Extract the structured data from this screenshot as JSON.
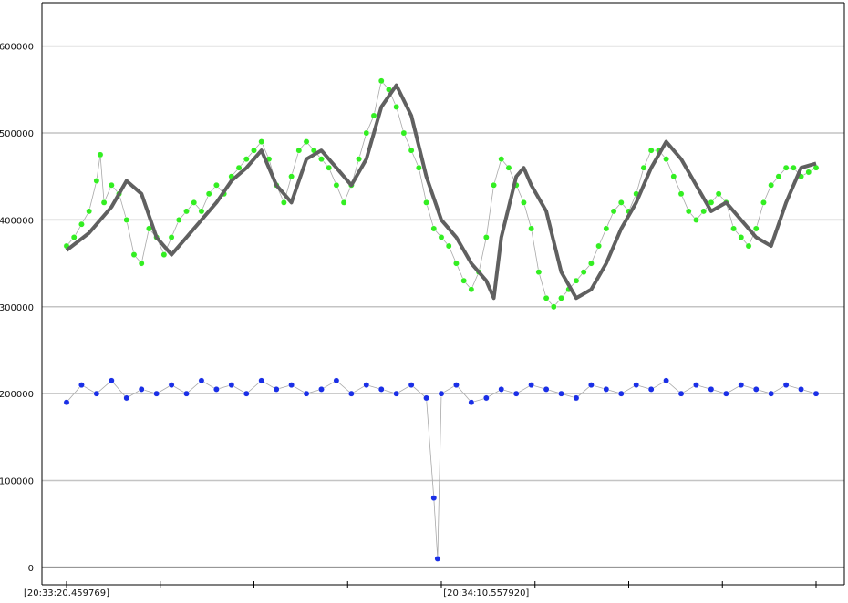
{
  "chart_data": {
    "type": "scatter",
    "title": "",
    "xlabel": "",
    "ylabel": "",
    "ylim": [
      -20000,
      650000
    ],
    "grid": "horizontal",
    "legend": "none",
    "y_ticks": [
      0,
      100000,
      200000,
      300000,
      400000,
      500000,
      600000
    ],
    "y_tick_labels": [
      "0",
      "100000",
      "200000",
      "300000",
      "400000",
      "500000",
      "600000"
    ],
    "x_tick_labels": [
      {
        "label": "[20:33:20.459769]",
        "at": 0
      },
      {
        "label": "[20:34:10.557920]",
        "at": 0.56
      }
    ],
    "x_minor_ticks": 9,
    "colors": {
      "green_series": "#33ee22",
      "blue_series": "#1a2fe6",
      "trend_line": "#606060",
      "stem": "#a8a8a8",
      "grid": "#c4c4c4",
      "zero_line": "#888888",
      "axis": "#000000"
    },
    "series": [
      {
        "type": "scatter",
        "color": "#33ee22",
        "points": [
          [
            0.0,
            370000
          ],
          [
            0.01,
            380000
          ],
          [
            0.02,
            395000
          ],
          [
            0.03,
            410000
          ],
          [
            0.04,
            445000
          ],
          [
            0.045,
            475000
          ],
          [
            0.05,
            420000
          ],
          [
            0.06,
            440000
          ],
          [
            0.07,
            430000
          ],
          [
            0.08,
            400000
          ],
          [
            0.09,
            360000
          ],
          [
            0.1,
            350000
          ],
          [
            0.11,
            390000
          ],
          [
            0.12,
            380000
          ],
          [
            0.13,
            360000
          ],
          [
            0.14,
            380000
          ],
          [
            0.15,
            400000
          ],
          [
            0.16,
            410000
          ],
          [
            0.17,
            420000
          ],
          [
            0.18,
            410000
          ],
          [
            0.19,
            430000
          ],
          [
            0.2,
            440000
          ],
          [
            0.21,
            430000
          ],
          [
            0.22,
            450000
          ],
          [
            0.23,
            460000
          ],
          [
            0.24,
            470000
          ],
          [
            0.25,
            480000
          ],
          [
            0.26,
            490000
          ],
          [
            0.27,
            470000
          ],
          [
            0.28,
            440000
          ],
          [
            0.29,
            420000
          ],
          [
            0.3,
            450000
          ],
          [
            0.31,
            480000
          ],
          [
            0.32,
            490000
          ],
          [
            0.33,
            480000
          ],
          [
            0.34,
            470000
          ],
          [
            0.35,
            460000
          ],
          [
            0.36,
            440000
          ],
          [
            0.37,
            420000
          ],
          [
            0.38,
            440000
          ],
          [
            0.39,
            470000
          ],
          [
            0.4,
            500000
          ],
          [
            0.41,
            520000
          ],
          [
            0.42,
            560000
          ],
          [
            0.43,
            550000
          ],
          [
            0.44,
            530000
          ],
          [
            0.45,
            500000
          ],
          [
            0.46,
            480000
          ],
          [
            0.47,
            460000
          ],
          [
            0.48,
            420000
          ],
          [
            0.49,
            390000
          ],
          [
            0.5,
            380000
          ],
          [
            0.51,
            370000
          ],
          [
            0.52,
            350000
          ],
          [
            0.53,
            330000
          ],
          [
            0.54,
            320000
          ],
          [
            0.55,
            340000
          ],
          [
            0.56,
            380000
          ],
          [
            0.57,
            440000
          ],
          [
            0.58,
            470000
          ],
          [
            0.59,
            460000
          ],
          [
            0.6,
            440000
          ],
          [
            0.61,
            420000
          ],
          [
            0.62,
            390000
          ],
          [
            0.63,
            340000
          ],
          [
            0.64,
            310000
          ],
          [
            0.65,
            300000
          ],
          [
            0.66,
            310000
          ],
          [
            0.67,
            320000
          ],
          [
            0.68,
            330000
          ],
          [
            0.69,
            340000
          ],
          [
            0.7,
            350000
          ],
          [
            0.71,
            370000
          ],
          [
            0.72,
            390000
          ],
          [
            0.73,
            410000
          ],
          [
            0.74,
            420000
          ],
          [
            0.75,
            410000
          ],
          [
            0.76,
            430000
          ],
          [
            0.77,
            460000
          ],
          [
            0.78,
            480000
          ],
          [
            0.79,
            480000
          ],
          [
            0.8,
            470000
          ],
          [
            0.81,
            450000
          ],
          [
            0.82,
            430000
          ],
          [
            0.83,
            410000
          ],
          [
            0.84,
            400000
          ],
          [
            0.85,
            410000
          ],
          [
            0.86,
            420000
          ],
          [
            0.87,
            430000
          ],
          [
            0.88,
            420000
          ],
          [
            0.89,
            390000
          ],
          [
            0.9,
            380000
          ],
          [
            0.91,
            370000
          ],
          [
            0.92,
            390000
          ],
          [
            0.93,
            420000
          ],
          [
            0.94,
            440000
          ],
          [
            0.95,
            450000
          ],
          [
            0.96,
            460000
          ],
          [
            0.97,
            460000
          ],
          [
            0.98,
            450000
          ],
          [
            0.99,
            455000
          ],
          [
            1.0,
            460000
          ]
        ]
      },
      {
        "type": "line",
        "color": "#606060",
        "points": [
          [
            0.0,
            365000
          ],
          [
            0.03,
            385000
          ],
          [
            0.06,
            415000
          ],
          [
            0.08,
            445000
          ],
          [
            0.1,
            430000
          ],
          [
            0.12,
            380000
          ],
          [
            0.14,
            360000
          ],
          [
            0.16,
            380000
          ],
          [
            0.18,
            400000
          ],
          [
            0.2,
            420000
          ],
          [
            0.22,
            445000
          ],
          [
            0.24,
            460000
          ],
          [
            0.26,
            480000
          ],
          [
            0.28,
            440000
          ],
          [
            0.3,
            420000
          ],
          [
            0.32,
            470000
          ],
          [
            0.34,
            480000
          ],
          [
            0.36,
            460000
          ],
          [
            0.38,
            440000
          ],
          [
            0.4,
            470000
          ],
          [
            0.42,
            530000
          ],
          [
            0.44,
            555000
          ],
          [
            0.46,
            520000
          ],
          [
            0.48,
            450000
          ],
          [
            0.5,
            400000
          ],
          [
            0.52,
            380000
          ],
          [
            0.54,
            350000
          ],
          [
            0.56,
            330000
          ],
          [
            0.57,
            310000
          ],
          [
            0.58,
            380000
          ],
          [
            0.6,
            450000
          ],
          [
            0.61,
            460000
          ],
          [
            0.62,
            440000
          ],
          [
            0.64,
            410000
          ],
          [
            0.66,
            340000
          ],
          [
            0.68,
            310000
          ],
          [
            0.7,
            320000
          ],
          [
            0.72,
            350000
          ],
          [
            0.74,
            390000
          ],
          [
            0.76,
            420000
          ],
          [
            0.78,
            460000
          ],
          [
            0.8,
            490000
          ],
          [
            0.82,
            470000
          ],
          [
            0.84,
            440000
          ],
          [
            0.86,
            410000
          ],
          [
            0.88,
            420000
          ],
          [
            0.9,
            400000
          ],
          [
            0.92,
            380000
          ],
          [
            0.94,
            370000
          ],
          [
            0.96,
            420000
          ],
          [
            0.98,
            460000
          ],
          [
            1.0,
            465000
          ]
        ]
      },
      {
        "type": "scatter",
        "color": "#1a2fe6",
        "points": [
          [
            0.0,
            190000
          ],
          [
            0.02,
            210000
          ],
          [
            0.04,
            200000
          ],
          [
            0.06,
            215000
          ],
          [
            0.08,
            195000
          ],
          [
            0.1,
            205000
          ],
          [
            0.12,
            200000
          ],
          [
            0.14,
            210000
          ],
          [
            0.16,
            200000
          ],
          [
            0.18,
            215000
          ],
          [
            0.2,
            205000
          ],
          [
            0.22,
            210000
          ],
          [
            0.24,
            200000
          ],
          [
            0.26,
            215000
          ],
          [
            0.28,
            205000
          ],
          [
            0.3,
            210000
          ],
          [
            0.32,
            200000
          ],
          [
            0.34,
            205000
          ],
          [
            0.36,
            215000
          ],
          [
            0.38,
            200000
          ],
          [
            0.4,
            210000
          ],
          [
            0.42,
            205000
          ],
          [
            0.44,
            200000
          ],
          [
            0.46,
            210000
          ],
          [
            0.48,
            195000
          ],
          [
            0.49,
            80000
          ],
          [
            0.495,
            10000
          ],
          [
            0.5,
            200000
          ],
          [
            0.52,
            210000
          ],
          [
            0.54,
            190000
          ],
          [
            0.56,
            195000
          ],
          [
            0.58,
            205000
          ],
          [
            0.6,
            200000
          ],
          [
            0.62,
            210000
          ],
          [
            0.64,
            205000
          ],
          [
            0.66,
            200000
          ],
          [
            0.68,
            195000
          ],
          [
            0.7,
            210000
          ],
          [
            0.72,
            205000
          ],
          [
            0.74,
            200000
          ],
          [
            0.76,
            210000
          ],
          [
            0.78,
            205000
          ],
          [
            0.8,
            215000
          ],
          [
            0.82,
            200000
          ],
          [
            0.84,
            210000
          ],
          [
            0.86,
            205000
          ],
          [
            0.88,
            200000
          ],
          [
            0.9,
            210000
          ],
          [
            0.92,
            205000
          ],
          [
            0.94,
            200000
          ],
          [
            0.96,
            210000
          ],
          [
            0.98,
            205000
          ],
          [
            1.0,
            200000
          ]
        ]
      }
    ]
  }
}
